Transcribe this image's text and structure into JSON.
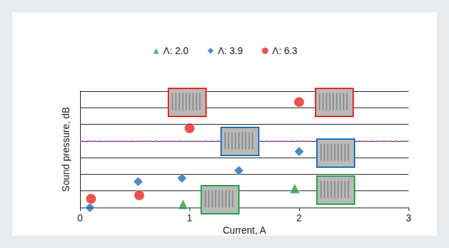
{
  "chart_data": {
    "type": "scatter",
    "x_label": "Current, A",
    "y_label": "Sound pressure, dB",
    "xlim": [
      0,
      3
    ],
    "xticks": [
      0,
      1,
      2,
      3
    ],
    "ylim": [
      0,
      7
    ],
    "yticks": [
      0,
      1,
      2,
      3,
      4,
      5,
      6,
      7
    ],
    "tick_labels": "x",
    "grid": true,
    "legend": "top",
    "reference_line": {
      "value": 4,
      "color": "#b060c8",
      "line_style": "dashed"
    },
    "series": [
      {
        "name": "Λ: 2.0",
        "color": "#22a04b",
        "marker": "triangle",
        "x": [
          0.94,
          1.96
        ],
        "values": [
          0.2,
          1.15
        ]
      },
      {
        "name": "Λ: 3.9",
        "color": "#1f6db5",
        "marker": "diamond",
        "x": [
          0.09,
          0.53,
          0.93,
          1.45,
          2.0
        ],
        "values": [
          0.0,
          1.56,
          1.77,
          2.22,
          3.37
        ]
      },
      {
        "name": "Λ: 6.3",
        "color": "#e8261f",
        "marker": "circle",
        "x": [
          0.1,
          0.54,
          1.0,
          2.0
        ],
        "values": [
          0.53,
          0.74,
          4.77,
          6.34
        ]
      }
    ]
  }
}
